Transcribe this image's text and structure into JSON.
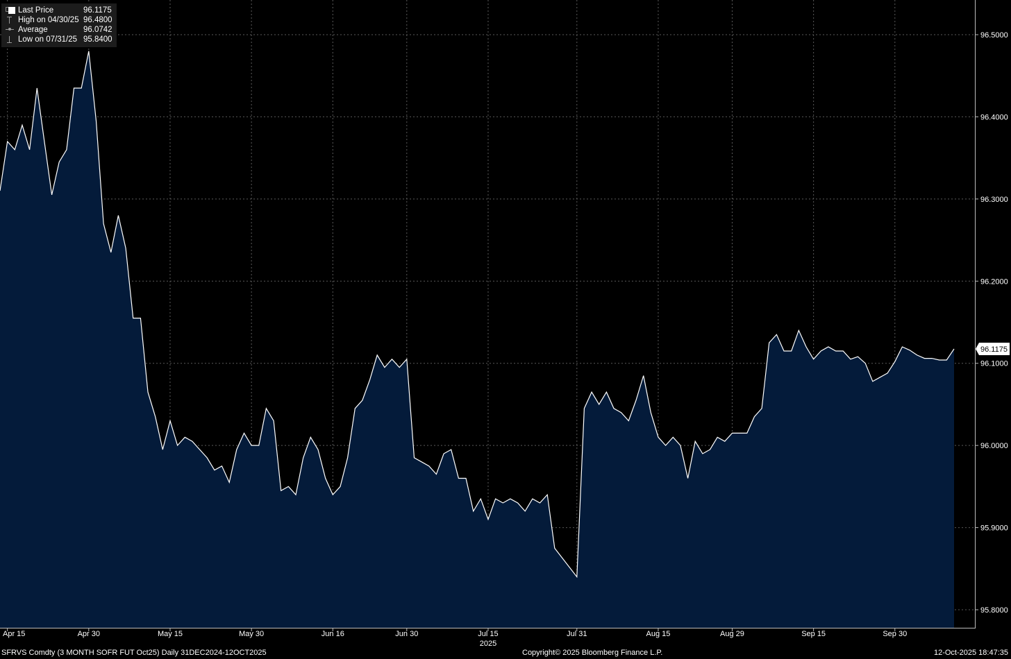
{
  "legend": {
    "items": [
      {
        "label": "Last Price",
        "value": "96.1175",
        "icon": "white-square-icon"
      },
      {
        "label": "High on 04/30/25",
        "value": "96.4800",
        "icon": "high-marker-icon"
      },
      {
        "label": "Average",
        "value": "96.0742",
        "icon": "average-line-icon"
      },
      {
        "label": "Low on 07/31/25",
        "value": "95.8400",
        "icon": "low-marker-icon"
      }
    ]
  },
  "last_price_tag": "96.1175",
  "footer": {
    "left": "SFRVS Comdty (3 MONTH SOFR FUT  Oct25) Daily 31DEC2024-12OCT2025",
    "center": "Copyright© 2025 Bloomberg Finance L.P.",
    "right": "12-Oct-2025 18:47:35"
  },
  "colors": {
    "background": "#000000",
    "area_fill": "#041b3a",
    "line": "#ffffff",
    "grid": "#5a5a5a",
    "text": "#ffffff"
  },
  "chart_data": {
    "type": "area",
    "title": "",
    "xlabel": "",
    "ylabel": "",
    "ylim": [
      95.78,
      96.52
    ],
    "y_ticks": [
      "96.5000",
      "96.4000",
      "96.3000",
      "96.2000",
      "96.1000",
      "96.0000",
      "95.9000",
      "95.8000"
    ],
    "y_tick_values": [
      96.5,
      96.4,
      96.3,
      96.2,
      96.1,
      96.0,
      95.9,
      95.8
    ],
    "x_ticks": [
      "Apr 15",
      "Apr 30",
      "May 15",
      "May 30",
      "Jun 16",
      "Jun 30",
      "Jul 15",
      "Jul 31",
      "Aug 15",
      "Aug 29",
      "Sep 15",
      "Sep 30"
    ],
    "x_year_label": "2025",
    "x_year_under": "Jul 15",
    "grid": true,
    "series": [
      {
        "values": [
          {
            "date": "2025-04-14",
            "y": 96.31
          },
          {
            "date": "2025-04-15",
            "y": 96.37
          },
          {
            "date": "2025-04-16",
            "y": 96.36
          },
          {
            "date": "2025-04-17",
            "y": 96.39
          },
          {
            "date": "2025-04-18",
            "y": 96.36
          },
          {
            "date": "2025-04-21",
            "y": 96.435
          },
          {
            "date": "2025-04-22",
            "y": 96.37
          },
          {
            "date": "2025-04-23",
            "y": 96.305
          },
          {
            "date": "2025-04-24",
            "y": 96.345
          },
          {
            "date": "2025-04-25",
            "y": 96.36
          },
          {
            "date": "2025-04-28",
            "y": 96.435
          },
          {
            "date": "2025-04-29",
            "y": 96.435
          },
          {
            "date": "2025-04-30",
            "y": 96.48
          },
          {
            "date": "2025-05-01",
            "y": 96.395
          },
          {
            "date": "2025-05-02",
            "y": 96.27
          },
          {
            "date": "2025-05-05",
            "y": 96.235
          },
          {
            "date": "2025-05-06",
            "y": 96.28
          },
          {
            "date": "2025-05-07",
            "y": 96.24
          },
          {
            "date": "2025-05-08",
            "y": 96.155
          },
          {
            "date": "2025-05-09",
            "y": 96.155
          },
          {
            "date": "2025-05-12",
            "y": 96.065
          },
          {
            "date": "2025-05-13",
            "y": 96.035
          },
          {
            "date": "2025-05-14",
            "y": 95.995
          },
          {
            "date": "2025-05-15",
            "y": 96.03
          },
          {
            "date": "2025-05-16",
            "y": 96.0
          },
          {
            "date": "2025-05-19",
            "y": 96.01
          },
          {
            "date": "2025-05-20",
            "y": 96.005
          },
          {
            "date": "2025-05-21",
            "y": 95.995
          },
          {
            "date": "2025-05-22",
            "y": 95.985
          },
          {
            "date": "2025-05-23",
            "y": 95.97
          },
          {
            "date": "2025-05-26",
            "y": 95.975
          },
          {
            "date": "2025-05-27",
            "y": 95.955
          },
          {
            "date": "2025-05-28",
            "y": 95.995
          },
          {
            "date": "2025-05-29",
            "y": 96.015
          },
          {
            "date": "2025-05-30",
            "y": 96.0
          },
          {
            "date": "2025-06-02",
            "y": 96.0
          },
          {
            "date": "2025-06-03",
            "y": 96.045
          },
          {
            "date": "2025-06-04",
            "y": 96.03
          },
          {
            "date": "2025-06-05",
            "y": 95.945
          },
          {
            "date": "2025-06-06",
            "y": 95.95
          },
          {
            "date": "2025-06-09",
            "y": 95.94
          },
          {
            "date": "2025-06-10",
            "y": 95.985
          },
          {
            "date": "2025-06-11",
            "y": 96.01
          },
          {
            "date": "2025-06-12",
            "y": 95.995
          },
          {
            "date": "2025-06-13",
            "y": 95.96
          },
          {
            "date": "2025-06-16",
            "y": 95.94
          },
          {
            "date": "2025-06-17",
            "y": 95.95
          },
          {
            "date": "2025-06-18",
            "y": 95.985
          },
          {
            "date": "2025-06-19",
            "y": 96.045
          },
          {
            "date": "2025-06-20",
            "y": 96.055
          },
          {
            "date": "2025-06-23",
            "y": 96.08
          },
          {
            "date": "2025-06-24",
            "y": 96.11
          },
          {
            "date": "2025-06-25",
            "y": 96.095
          },
          {
            "date": "2025-06-26",
            "y": 96.105
          },
          {
            "date": "2025-06-27",
            "y": 96.095
          },
          {
            "date": "2025-06-30",
            "y": 96.105
          },
          {
            "date": "2025-07-01",
            "y": 95.985
          },
          {
            "date": "2025-07-02",
            "y": 95.98
          },
          {
            "date": "2025-07-03",
            "y": 95.975
          },
          {
            "date": "2025-07-04",
            "y": 95.965
          },
          {
            "date": "2025-07-07",
            "y": 95.99
          },
          {
            "date": "2025-07-08",
            "y": 95.995
          },
          {
            "date": "2025-07-09",
            "y": 95.96
          },
          {
            "date": "2025-07-10",
            "y": 95.96
          },
          {
            "date": "2025-07-11",
            "y": 95.92
          },
          {
            "date": "2025-07-14",
            "y": 95.935
          },
          {
            "date": "2025-07-15",
            "y": 95.91
          },
          {
            "date": "2025-07-16",
            "y": 95.935
          },
          {
            "date": "2025-07-17",
            "y": 95.93
          },
          {
            "date": "2025-07-18",
            "y": 95.935
          },
          {
            "date": "2025-07-21",
            "y": 95.93
          },
          {
            "date": "2025-07-22",
            "y": 95.92
          },
          {
            "date": "2025-07-23",
            "y": 95.935
          },
          {
            "date": "2025-07-24",
            "y": 95.93
          },
          {
            "date": "2025-07-25",
            "y": 95.94
          },
          {
            "date": "2025-07-28",
            "y": 95.875
          },
          {
            "date": "2025-07-31",
            "y": 95.84
          },
          {
            "date": "2025-08-01",
            "y": 96.045
          },
          {
            "date": "2025-08-04",
            "y": 96.065
          },
          {
            "date": "2025-08-05",
            "y": 96.05
          },
          {
            "date": "2025-08-06",
            "y": 96.065
          },
          {
            "date": "2025-08-07",
            "y": 96.045
          },
          {
            "date": "2025-08-08",
            "y": 96.04
          },
          {
            "date": "2025-08-11",
            "y": 96.03
          },
          {
            "date": "2025-08-12",
            "y": 96.055
          },
          {
            "date": "2025-08-13",
            "y": 96.085
          },
          {
            "date": "2025-08-14",
            "y": 96.04
          },
          {
            "date": "2025-08-15",
            "y": 96.01
          },
          {
            "date": "2025-08-18",
            "y": 96.0
          },
          {
            "date": "2025-08-19",
            "y": 96.01
          },
          {
            "date": "2025-08-20",
            "y": 96.0
          },
          {
            "date": "2025-08-21",
            "y": 95.96
          },
          {
            "date": "2025-08-22",
            "y": 96.005
          },
          {
            "date": "2025-08-25",
            "y": 95.99
          },
          {
            "date": "2025-08-26",
            "y": 95.995
          },
          {
            "date": "2025-08-27",
            "y": 96.01
          },
          {
            "date": "2025-08-28",
            "y": 96.005
          },
          {
            "date": "2025-08-29",
            "y": 96.015
          },
          {
            "date": "2025-09-01",
            "y": 96.015
          },
          {
            "date": "2025-09-02",
            "y": 96.015
          },
          {
            "date": "2025-09-03",
            "y": 96.035
          },
          {
            "date": "2025-09-04",
            "y": 96.045
          },
          {
            "date": "2025-09-05",
            "y": 96.125
          },
          {
            "date": "2025-09-08",
            "y": 96.135
          },
          {
            "date": "2025-09-09",
            "y": 96.115
          },
          {
            "date": "2025-09-10",
            "y": 96.115
          },
          {
            "date": "2025-09-11",
            "y": 96.14
          },
          {
            "date": "2025-09-12",
            "y": 96.12
          },
          {
            "date": "2025-09-15",
            "y": 96.105
          },
          {
            "date": "2025-09-16",
            "y": 96.115
          },
          {
            "date": "2025-09-17",
            "y": 96.12
          },
          {
            "date": "2025-09-18",
            "y": 96.115
          },
          {
            "date": "2025-09-19",
            "y": 96.115
          },
          {
            "date": "2025-09-22",
            "y": 96.105
          },
          {
            "date": "2025-09-23",
            "y": 96.108
          },
          {
            "date": "2025-09-24",
            "y": 96.1
          },
          {
            "date": "2025-09-25",
            "y": 96.078
          },
          {
            "date": "2025-09-26",
            "y": 96.083
          },
          {
            "date": "2025-09-29",
            "y": 96.088
          },
          {
            "date": "2025-09-30",
            "y": 96.102
          },
          {
            "date": "2025-10-01",
            "y": 96.12
          },
          {
            "date": "2025-10-02",
            "y": 96.116
          },
          {
            "date": "2025-10-03",
            "y": 96.11
          },
          {
            "date": "2025-10-06",
            "y": 96.106
          },
          {
            "date": "2025-10-07",
            "y": 96.106
          },
          {
            "date": "2025-10-08",
            "y": 96.104
          },
          {
            "date": "2025-10-09",
            "y": 96.104
          },
          {
            "date": "2025-10-10",
            "y": 96.1175
          }
        ]
      }
    ]
  }
}
